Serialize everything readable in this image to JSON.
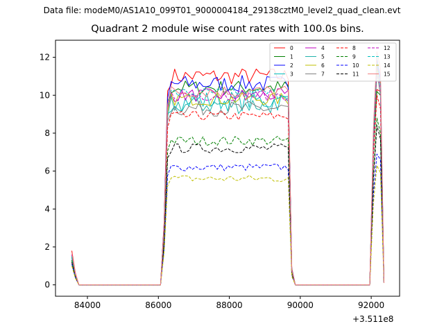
{
  "figure": {
    "suptitle": "Data file: modeM0/AS1A10_099T01_9000004184_29138cztM0_level2_quad_clean.evt",
    "title": "Quadrant 2 module wise count rates with 100.0s bins.",
    "x_offset_label": "+3.511e8"
  },
  "chart_data": {
    "type": "line",
    "title": "Quadrant 2 module wise count rates with 100.0s bins.",
    "xlabel": "",
    "ylabel": "",
    "x_offset": 351100000,
    "xlim": [
      83100,
      92800
    ],
    "ylim": [
      -0.6,
      12.9
    ],
    "x_ticks": [
      84000,
      86000,
      88000,
      90000,
      92000
    ],
    "x_tick_labels": [
      "84000",
      "86000",
      "88000",
      "90000",
      "92000"
    ],
    "y_ticks": [
      0,
      2,
      4,
      6,
      8,
      10,
      12
    ],
    "y_tick_labels": [
      "0",
      "2",
      "4",
      "6",
      "8",
      "10",
      "12"
    ],
    "grid": false,
    "legend": "upper right, 4 columns",
    "bin_seconds": 100,
    "segments": [
      {
        "x_start": 83560,
        "x_end": 83760,
        "description": "decay"
      },
      {
        "x_start": 83760,
        "x_end": 86060,
        "value": 0
      },
      {
        "x_start": 86160,
        "x_end": 89760,
        "description": "active"
      },
      {
        "x_start": 89860,
        "x_end": 91960,
        "value": 0
      },
      {
        "x_start": 92060,
        "x_end": 92360,
        "description": "active"
      }
    ],
    "series": [
      {
        "name": "0",
        "color": "#ff0000",
        "dash": "solid",
        "first": 1.8,
        "level": 11.0,
        "end_level": 10.2,
        "end_peak": 10.3,
        "variability": 0.45
      },
      {
        "name": "1",
        "color": "#008000",
        "dash": "solid",
        "first": 1.5,
        "level": 10.4,
        "end_level": 10.0,
        "end_peak": 10.2,
        "variability": 0.4
      },
      {
        "name": "2",
        "color": "#0000ff",
        "dash": "solid",
        "first": 1.6,
        "level": 10.6,
        "end_level": 10.9,
        "end_peak": 11.9,
        "variability": 0.45
      },
      {
        "name": "3",
        "color": "#00bfbf",
        "dash": "solid",
        "first": 1.4,
        "level": 9.7,
        "end_level": 10.4,
        "end_peak": 11.5,
        "variability": 0.55
      },
      {
        "name": "4",
        "color": "#bf00bf",
        "dash": "solid",
        "first": 1.5,
        "level": 10.0,
        "end_level": 10.5,
        "end_peak": 11.7,
        "variability": 0.35
      },
      {
        "name": "5",
        "color": "#20b2aa",
        "dash": "solid",
        "first": 1.4,
        "level": 9.5,
        "end_level": 10.6,
        "end_peak": 11.6,
        "variability": 0.5
      },
      {
        "name": "6",
        "color": "#bfbf00",
        "dash": "solid",
        "first": 1.3,
        "level": 9.8,
        "end_level": 10.6,
        "end_peak": 11.4,
        "variability": 0.35
      },
      {
        "name": "7",
        "color": "#808080",
        "dash": "solid",
        "first": 1.3,
        "level": 9.3,
        "end_level": 10.0,
        "end_peak": 11.2,
        "variability": 0.4
      },
      {
        "name": "8",
        "color": "#ff0000",
        "dash": "dashed",
        "first": 1.5,
        "level": 8.9,
        "end_level": 9.3,
        "end_peak": 10.0,
        "variability": 0.25
      },
      {
        "name": "9",
        "color": "#008000",
        "dash": "dashed",
        "first": 1.3,
        "level": 7.6,
        "end_level": 8.0,
        "end_peak": 8.8,
        "variability": 0.25
      },
      {
        "name": "10",
        "color": "#0000ff",
        "dash": "dashed",
        "first": 1.1,
        "level": 6.2,
        "end_level": 6.6,
        "end_peak": 6.9,
        "variability": 0.2
      },
      {
        "name": "11",
        "color": "#000000",
        "dash": "dashed",
        "first": 1.2,
        "level": 7.2,
        "end_level": 7.7,
        "end_peak": 8.4,
        "variability": 0.25
      },
      {
        "name": "12",
        "color": "#bf00bf",
        "dash": "dashed",
        "first": 1.6,
        "level": 10.0,
        "end_level": 10.3,
        "end_peak": 11.8,
        "variability": 0.3
      },
      {
        "name": "13",
        "color": "#00bfbf",
        "dash": "dashed",
        "first": 1.5,
        "level": 10.1,
        "end_level": 10.5,
        "end_peak": 12.0,
        "variability": 0.3
      },
      {
        "name": "14",
        "color": "#bfbf00",
        "dash": "dashed",
        "first": 1.0,
        "level": 5.6,
        "end_level": 5.9,
        "end_peak": 6.3,
        "variability": 0.2
      },
      {
        "name": "15",
        "color": "#f08080",
        "dash": "solid",
        "first": 1.7,
        "level": 10.2,
        "end_level": 11.4,
        "end_peak": 12.3,
        "variability": 0.35
      }
    ]
  }
}
